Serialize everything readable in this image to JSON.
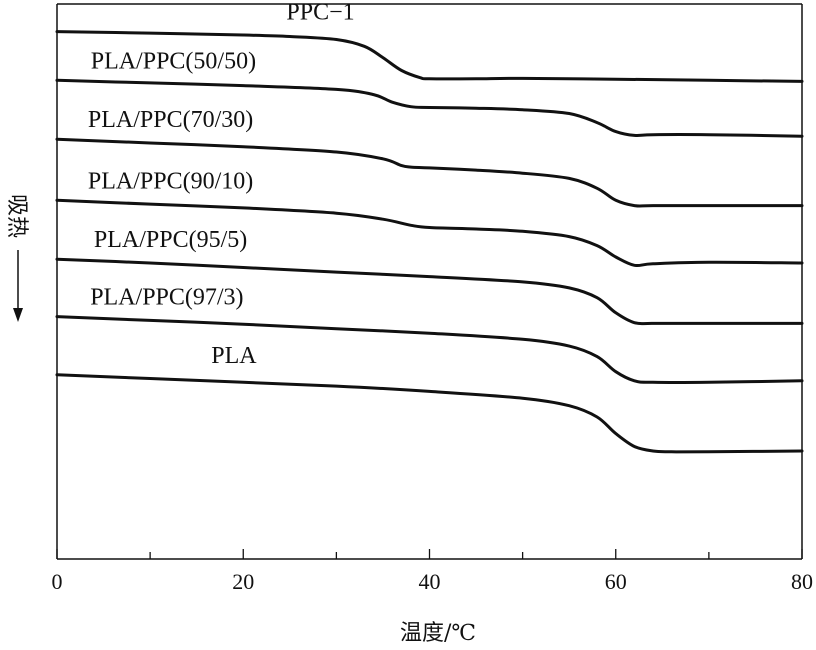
{
  "chart_data": {
    "type": "line",
    "xlabel": "温度/℃",
    "ylabel": "吸热",
    "xlim": [
      0,
      80
    ],
    "xticks": [
      "0",
      "20",
      "40",
      "60",
      "80"
    ],
    "series": [
      {
        "name": "PPC−1",
        "x": [
          0,
          10,
          20,
          25,
          30,
          33,
          35,
          37,
          39,
          40,
          45,
          50,
          60,
          70,
          80
        ],
        "y": [
          0.45,
          0.25,
          0.0,
          -0.2,
          -0.6,
          -1.5,
          -3.0,
          -4.7,
          -5.65,
          -5.8,
          -5.8,
          -5.75,
          -5.85,
          -6.0,
          -6.15
        ]
      },
      {
        "name": "PLA/PPC(50/50)",
        "x": [
          0,
          10,
          20,
          30,
          34,
          36,
          38,
          40,
          45,
          50,
          55,
          58,
          60,
          62,
          64,
          70,
          80
        ],
        "y": [
          -6.0,
          -6.35,
          -6.7,
          -7.2,
          -7.9,
          -8.9,
          -9.5,
          -9.6,
          -9.7,
          -9.9,
          -10.4,
          -11.6,
          -12.8,
          -13.3,
          -13.2,
          -13.2,
          -13.4
        ]
      },
      {
        "name": "PLA/PPC(70/30)",
        "x": [
          0,
          10,
          20,
          30,
          35,
          37,
          38,
          40,
          45,
          50,
          55,
          58,
          60,
          62,
          64,
          70,
          80
        ],
        "y": [
          -13.8,
          -14.3,
          -14.8,
          -15.5,
          -16.4,
          -17.3,
          -17.5,
          -17.6,
          -17.9,
          -18.3,
          -19.0,
          -20.3,
          -21.9,
          -22.6,
          -22.6,
          -22.6,
          -22.6
        ]
      },
      {
        "name": "PLA/PPC(90/10)",
        "x": [
          0,
          10,
          20,
          30,
          35,
          38,
          40,
          45,
          50,
          55,
          58,
          60,
          62,
          64,
          70,
          80
        ],
        "y": [
          -21.9,
          -22.4,
          -22.9,
          -23.6,
          -24.4,
          -25.2,
          -25.5,
          -25.7,
          -26.0,
          -26.7,
          -27.9,
          -29.4,
          -30.5,
          -30.3,
          -30.1,
          -30.2
        ]
      },
      {
        "name": "PLA/PPC(95/5)",
        "x": [
          0,
          10,
          20,
          30,
          40,
          50,
          55,
          58,
          60,
          62,
          64,
          70,
          80
        ],
        "y": [
          -29.7,
          -30.2,
          -30.8,
          -31.4,
          -32.0,
          -32.7,
          -33.5,
          -34.8,
          -36.8,
          -38.1,
          -38.2,
          -38.2,
          -38.2
        ]
      },
      {
        "name": "PLA/PPC(97/3)",
        "x": [
          0,
          10,
          20,
          30,
          40,
          50,
          55,
          58,
          60,
          62,
          64,
          70,
          80
        ],
        "y": [
          -37.3,
          -37.8,
          -38.3,
          -38.9,
          -39.5,
          -40.3,
          -41.2,
          -42.6,
          -44.6,
          -45.8,
          -46.0,
          -46.0,
          -45.8
        ]
      },
      {
        "name": "PLA",
        "x": [
          0,
          10,
          20,
          30,
          40,
          50,
          55,
          58,
          60,
          62,
          64,
          66,
          70,
          80
        ],
        "y": [
          -45.0,
          -45.5,
          -46.0,
          -46.5,
          -47.2,
          -48.1,
          -49.1,
          -50.6,
          -52.8,
          -54.5,
          -55.1,
          -55.2,
          -55.2,
          -55.1
        ]
      }
    ]
  }
}
